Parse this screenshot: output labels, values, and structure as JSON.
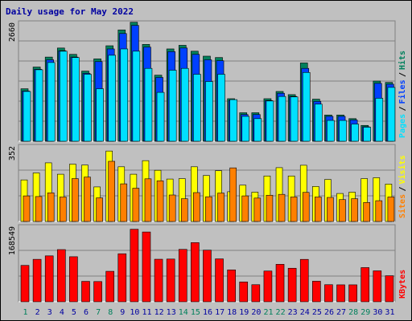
{
  "title": "Daily usage for May 2022",
  "colors": {
    "hits": "#00805c",
    "files": "#0040ff",
    "pages": "#00e0ff",
    "visits": "#ffff00",
    "sites": "#ff8000",
    "kbytes": "#ff0000",
    "weekend_label": "#00805c",
    "weekday_label": "#0000a0"
  },
  "chart_data": [
    {
      "type": "bar",
      "panel": "top",
      "ymax_label": "2660",
      "ylim": [
        0,
        2660
      ],
      "categories": [
        "1",
        "2",
        "3",
        "4",
        "5",
        "6",
        "7",
        "8",
        "9",
        "10",
        "11",
        "12",
        "13",
        "14",
        "15",
        "16",
        "17",
        "18",
        "19",
        "20",
        "21",
        "22",
        "23",
        "24",
        "25",
        "26",
        "27",
        "28",
        "29",
        "30",
        "31"
      ],
      "weekend_days": [
        "1",
        "7",
        "8",
        "14",
        "15",
        "21",
        "22",
        "28",
        "29"
      ],
      "series": [
        {
          "name": "Hits",
          "values": [
            1160,
            1640,
            1860,
            2060,
            1920,
            1550,
            1820,
            2110,
            2460,
            2630,
            2140,
            1460,
            2040,
            2120,
            1990,
            1880,
            1850,
            940,
            630,
            630,
            940,
            1100,
            1030,
            1730,
            930,
            580,
            580,
            500,
            350,
            1330,
            1300
          ]
        },
        {
          "name": "Files",
          "values": [
            1110,
            1590,
            1800,
            2000,
            1860,
            1500,
            1760,
            2040,
            2380,
            2560,
            2080,
            1410,
            1980,
            2060,
            1920,
            1800,
            1780,
            900,
            590,
            590,
            900,
            1060,
            990,
            1610,
            880,
            550,
            550,
            470,
            320,
            1280,
            1260
          ]
        },
        {
          "name": "Pages",
          "values": [
            1100,
            1580,
            1740,
            1990,
            1850,
            1480,
            1160,
            1900,
            2040,
            1990,
            1610,
            1080,
            1570,
            1610,
            1480,
            1320,
            1480,
            920,
            550,
            500,
            890,
            990,
            980,
            1520,
            820,
            460,
            460,
            380,
            310,
            950,
            1190
          ]
        }
      ],
      "right_labels": [
        "Pages",
        "Files",
        "Hits"
      ]
    },
    {
      "type": "bar",
      "panel": "middle",
      "ymax_label": "352",
      "ylim": [
        0,
        352
      ],
      "categories": [
        "1",
        "2",
        "3",
        "4",
        "5",
        "6",
        "7",
        "8",
        "9",
        "10",
        "11",
        "12",
        "13",
        "14",
        "15",
        "16",
        "17",
        "18",
        "19",
        "20",
        "21",
        "22",
        "23",
        "24",
        "25",
        "26",
        "27",
        "28",
        "29",
        "30",
        "31"
      ],
      "series": [
        {
          "name": "Visits",
          "values": [
            190,
            222,
            268,
            216,
            262,
            258,
            158,
            322,
            250,
            216,
            278,
            234,
            194,
            196,
            250,
            210,
            232,
            136,
            166,
            134,
            208,
            246,
            208,
            257,
            160,
            192,
            128,
            134,
            196,
            200,
            171
          ]
        },
        {
          "name": "Sites",
          "values": [
            117,
            114,
            131,
            112,
            196,
            203,
            108,
            275,
            172,
            152,
            195,
            186,
            121,
            104,
            132,
            113,
            130,
            245,
            117,
            107,
            120,
            124,
            112,
            133,
            112,
            110,
            100,
            104,
            87,
            95,
            112
          ]
        }
      ],
      "right_labels": [
        "Sites",
        "Visits"
      ]
    },
    {
      "type": "bar",
      "panel": "bottom",
      "ymax_label": "168549",
      "ylim": [
        0,
        168549
      ],
      "categories": [
        "1",
        "2",
        "3",
        "4",
        "5",
        "6",
        "7",
        "8",
        "9",
        "10",
        "11",
        "12",
        "13",
        "14",
        "15",
        "16",
        "17",
        "18",
        "19",
        "20",
        "21",
        "22",
        "23",
        "24",
        "25",
        "26",
        "27",
        "28",
        "29",
        "30",
        "31"
      ],
      "series": [
        {
          "name": "KBytes",
          "values": [
            79500,
            92800,
            100400,
            114100,
            98500,
            44600,
            44200,
            66600,
            105000,
            158600,
            152600,
            93000,
            93400,
            114600,
            129400,
            112900,
            93800,
            69700,
            43300,
            37300,
            67200,
            81900,
            73300,
            92700,
            44900,
            37300,
            37000,
            37000,
            74700,
            67600,
            56900
          ]
        }
      ],
      "right_labels": [
        "KBytes"
      ]
    }
  ]
}
